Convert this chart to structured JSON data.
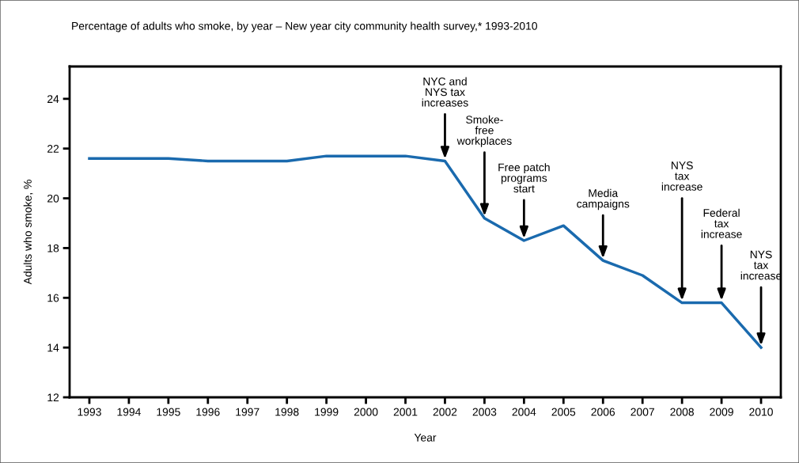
{
  "chart_data": {
    "type": "line",
    "title": "Percentage of adults who smoke, by year – New year city community health survey,* 1993-2010",
    "xlabel": "Year",
    "ylabel": "Adults who smoke, %",
    "x": [
      1993,
      1994,
      1995,
      1996,
      1997,
      1998,
      1999,
      2000,
      2001,
      2002,
      2003,
      2004,
      2005,
      2006,
      2007,
      2008,
      2009,
      2010
    ],
    "series": [
      {
        "color": "#1a6aae",
        "values": [
          21.6,
          21.6,
          21.6,
          21.5,
          21.5,
          21.5,
          21.7,
          21.7,
          21.7,
          21.5,
          19.2,
          18.3,
          18.9,
          17.5,
          16.9,
          15.8,
          15.8,
          14.0
        ]
      }
    ],
    "xlim": [
      1992.5,
      2010.5
    ],
    "xticks": [
      1993,
      1994,
      1995,
      1996,
      1997,
      1998,
      1999,
      2000,
      2001,
      2002,
      2003,
      2004,
      2005,
      2006,
      2007,
      2008,
      2009,
      2010
    ],
    "ylim": [
      12,
      25.3
    ],
    "yticks": [
      12,
      14,
      16,
      18,
      20,
      22,
      24
    ],
    "grid": false,
    "legend": false,
    "marker": "none",
    "line_style": "solid",
    "annotations": [
      {
        "text": "NYC and\nNYS tax\nincreases",
        "x": 2002,
        "y": 21.5
      },
      {
        "text": "Smoke-\nfree\nworkplaces",
        "x": 2003,
        "y": 19.2
      },
      {
        "text": "Free patch\nprograms\nstart",
        "x": 2004,
        "y": 18.3
      },
      {
        "text": "Media\ncampaigns",
        "x": 2006,
        "y": 17.5
      },
      {
        "text": "NYS\ntax\nincrease",
        "x": 2008,
        "y": 15.8
      },
      {
        "text": "Federal\ntax\nincrease",
        "x": 2009,
        "y": 15.8
      },
      {
        "text": "NYS\ntax\nincrease",
        "x": 2010,
        "y": 14.0
      }
    ]
  }
}
